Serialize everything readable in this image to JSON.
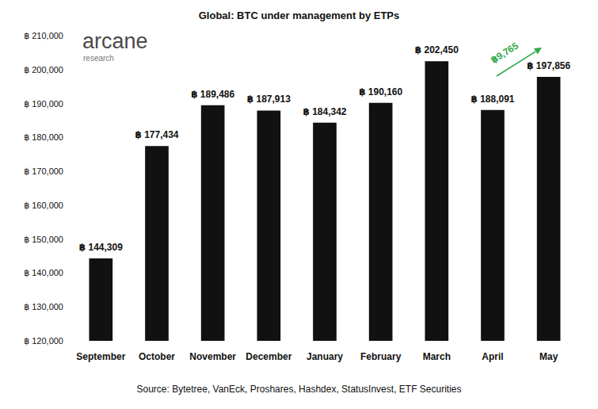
{
  "chart_data": {
    "type": "bar",
    "title": "Global: BTC under management by ETPs",
    "categories": [
      "September",
      "October",
      "November",
      "December",
      "January",
      "February",
      "March",
      "April",
      "May"
    ],
    "values": [
      144309,
      177434,
      189486,
      187913,
      184342,
      190160,
      202450,
      188091,
      197856
    ],
    "value_labels": [
      "฿ 144,309",
      "฿ 177,434",
      "฿ 189,486",
      "฿ 187,913",
      "฿ 184,342",
      "฿ 190,160",
      "฿ 202,450",
      "฿ 188,091",
      "฿ 197,856"
    ],
    "color": "#111111",
    "ylim": [
      120000,
      210000
    ],
    "yticks": [
      {
        "value": 120000,
        "label": "฿ 120,000"
      },
      {
        "value": 130000,
        "label": "฿ 130,000"
      },
      {
        "value": 140000,
        "label": "฿ 140,000"
      },
      {
        "value": 150000,
        "label": "฿ 150,000"
      },
      {
        "value": 160000,
        "label": "฿ 160,000"
      },
      {
        "value": 170000,
        "label": "฿ 170,000"
      },
      {
        "value": 180000,
        "label": "฿ 180,000"
      },
      {
        "value": 190000,
        "label": "฿ 190,000"
      },
      {
        "value": 200000,
        "label": "฿ 200,000"
      },
      {
        "value": 210000,
        "label": "฿ 210,000"
      }
    ],
    "grid": false,
    "data_labels": true,
    "annotations": [
      {
        "text": "฿9,765"
      }
    ],
    "logo": {
      "text": "arcane",
      "subtext": "research"
    },
    "source": "Source: Bytetree, VanEck, Proshares, Hashdex, StatusInvest, ETF Securities"
  }
}
